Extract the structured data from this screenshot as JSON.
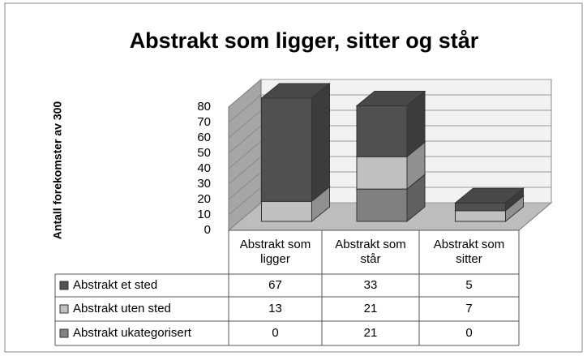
{
  "chart_data": {
    "type": "bar3d_stacked",
    "title": "Abstrakt som ligger, sitter og står",
    "y_label": "Antall forekomster av 300",
    "categories": [
      "Abstrakt som ligger",
      "Abstrakt som står",
      "Abstrakt som sitter"
    ],
    "series": [
      {
        "name": "Abstrakt et sted",
        "color": "#505050",
        "values": [
          67,
          33,
          5
        ]
      },
      {
        "name": "Abstrakt uten sted",
        "color": "#c0c0c0",
        "values": [
          13,
          21,
          7
        ]
      },
      {
        "name": "Abstrakt ukategorisert",
        "color": "#808080",
        "values": [
          0,
          21,
          0
        ]
      }
    ],
    "ylim": [
      0,
      80
    ],
    "yticks": [
      0,
      10,
      20,
      30,
      40,
      50,
      60,
      70,
      80
    ],
    "grid": true
  }
}
